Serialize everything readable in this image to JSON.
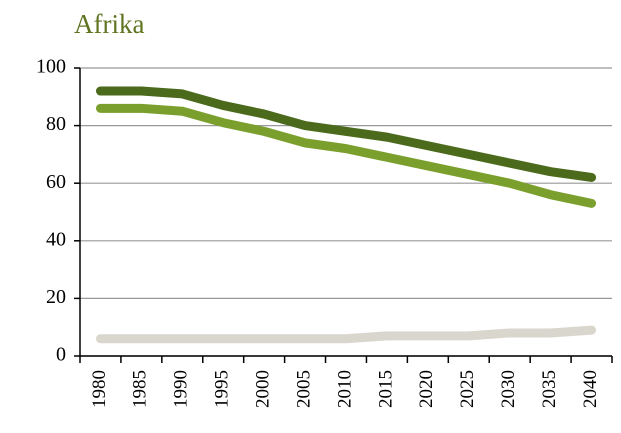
{
  "chart_data": {
    "type": "line",
    "title": "Afrika",
    "categories": [
      "1980",
      "1985",
      "1990",
      "1995",
      "2000",
      "2005",
      "2010",
      "2015",
      "2020",
      "2025",
      "2030",
      "2035",
      "2040"
    ],
    "series": [
      {
        "color": "#4b6a1c",
        "values": [
          92,
          92,
          91,
          87,
          84,
          80,
          78,
          76,
          73,
          70,
          67,
          64,
          62
        ]
      },
      {
        "color": "#7b9f2c",
        "values": [
          86,
          86,
          85,
          81,
          78,
          74,
          72,
          69,
          66,
          63,
          60,
          56,
          53
        ]
      },
      {
        "color": "#d9d6cd",
        "values": [
          6,
          6,
          6,
          6,
          6,
          6,
          6,
          7,
          7,
          7,
          8,
          8,
          9
        ]
      }
    ],
    "ylim": [
      0,
      100
    ],
    "yticks": [
      0,
      20,
      40,
      60,
      80,
      100
    ],
    "grid": true
  }
}
